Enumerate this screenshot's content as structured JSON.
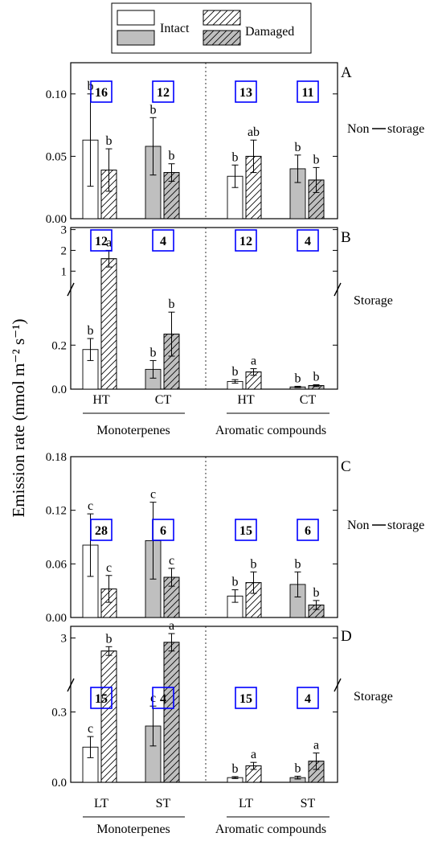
{
  "legend": {
    "intact_label": "Intact",
    "damaged_label": "Damaged"
  },
  "y_axis_title": "Emission rate (nmol m⁻² s⁻¹)",
  "colors": {
    "intact": "#ffffff",
    "nonstorage_fill": "#bfbfbf",
    "box_border": "#0000ff",
    "ink": "#000000"
  },
  "top_x_groups": {
    "categories_left": [
      "HT",
      "CT"
    ],
    "categories_right": [
      "HT",
      "CT"
    ],
    "group_left": "Monoterpenes",
    "group_right": "Aromatic compounds"
  },
  "bottom_x_groups": {
    "categories_left": [
      "LT",
      "ST"
    ],
    "categories_right": [
      "LT",
      "ST"
    ],
    "group_left": "Monoterpenes",
    "group_right": "Aromatic compounds"
  },
  "chart_data": [
    {
      "panel": "A",
      "type": "bar",
      "side_label": [
        "Non",
        "storage"
      ],
      "ylim": [
        0,
        0.125
      ],
      "yticks": [
        0,
        0.05,
        0.1
      ],
      "ytick_labels": [
        "0.00",
        "0.05",
        "0.10"
      ],
      "categories": [
        "Monoterpenes HT",
        "Monoterpenes CT",
        "Aromatic compounds HT",
        "Aromatic compounds CT"
      ],
      "series": [
        {
          "name": "Intact",
          "values": [
            0.063,
            0.058,
            0.034,
            0.04
          ],
          "errors": [
            0.037,
            0.023,
            0.009,
            0.011
          ]
        },
        {
          "name": "Damaged",
          "values": [
            0.039,
            0.037,
            0.05,
            0.031
          ],
          "errors": [
            0.017,
            0.007,
            0.013,
            0.01
          ]
        }
      ],
      "letters": [
        [
          "b",
          "b",
          "b",
          "b"
        ],
        [
          "b",
          "b",
          "ab",
          "b"
        ]
      ],
      "sample_sizes": [
        "16",
        "12",
        "13",
        "11"
      ]
    },
    {
      "panel": "B",
      "type": "bar",
      "side_label": [
        "Storage"
      ],
      "broken_axis": true,
      "lower_ylim": [
        0,
        0.38
      ],
      "upper_ylim": [
        0.7,
        3.1
      ],
      "yticks": [
        0,
        0.2,
        1,
        2,
        3
      ],
      "ytick_labels": [
        "0.0",
        "0.2",
        "1",
        "2",
        "3"
      ],
      "categories": [
        "Monoterpenes HT",
        "Monoterpenes CT",
        "Aromatic compounds HT",
        "Aromatic compounds CT"
      ],
      "series": [
        {
          "name": "Intact",
          "values": [
            0.18,
            0.09,
            0.035,
            0.01
          ],
          "errors": [
            0.05,
            0.04,
            0.008,
            0.003
          ]
        },
        {
          "name": "Damaged",
          "values": [
            1.6,
            0.25,
            0.078,
            0.016
          ],
          "errors": [
            0.4,
            0.1,
            0.015,
            0.004
          ]
        }
      ],
      "letters": [
        [
          "b",
          "b",
          "b",
          "b"
        ],
        [
          "a",
          "b",
          "a",
          "b"
        ]
      ],
      "sample_sizes": [
        "12",
        "4",
        "12",
        "4"
      ]
    },
    {
      "panel": "C",
      "type": "bar",
      "side_label": [
        "Non",
        "storage"
      ],
      "ylim": [
        0,
        0.18
      ],
      "yticks": [
        0,
        0.06,
        0.12,
        0.18
      ],
      "ytick_labels": [
        "0.00",
        "0.06",
        "0.12",
        "0.18"
      ],
      "categories": [
        "Monoterpenes LT",
        "Monoterpenes ST",
        "Aromatic compounds LT",
        "Aromatic compounds ST"
      ],
      "series": [
        {
          "name": "Intact",
          "values": [
            0.081,
            0.086,
            0.024,
            0.037
          ],
          "errors": [
            0.035,
            0.043,
            0.007,
            0.014
          ]
        },
        {
          "name": "Damaged",
          "values": [
            0.032,
            0.045,
            0.039,
            0.014
          ],
          "errors": [
            0.015,
            0.01,
            0.012,
            0.005
          ]
        }
      ],
      "letters": [
        [
          "c",
          "c",
          "b",
          "b"
        ],
        [
          "c",
          "c",
          "b",
          "b"
        ]
      ],
      "sample_sizes": [
        "28",
        "6",
        "15",
        "6"
      ]
    },
    {
      "panel": "D",
      "type": "bar",
      "side_label": [
        "Storage"
      ],
      "broken_axis": true,
      "lower_ylim": [
        0,
        0.36
      ],
      "upper_ylim": [
        0.7,
        3.8
      ],
      "yticks": [
        0,
        0.3,
        3
      ],
      "ytick_labels": [
        "0.0",
        "0.3",
        "3"
      ],
      "categories": [
        "Monoterpenes LT",
        "Monoterpenes ST",
        "Aromatic compounds LT",
        "Aromatic compounds ST"
      ],
      "series": [
        {
          "name": "Intact",
          "values": [
            0.15,
            0.24,
            0.02,
            0.02
          ],
          "errors": [
            0.045,
            0.085,
            0.004,
            0.006
          ]
        },
        {
          "name": "Damaged",
          "values": [
            2.1,
            2.7,
            0.07,
            0.09
          ],
          "errors": [
            0.3,
            0.6,
            0.015,
            0.035
          ]
        }
      ],
      "letters": [
        [
          "c",
          "c",
          "b",
          "b"
        ],
        [
          "b",
          "a",
          "a",
          "a"
        ]
      ],
      "sample_sizes": [
        "15",
        "4",
        "15",
        "4"
      ]
    }
  ]
}
